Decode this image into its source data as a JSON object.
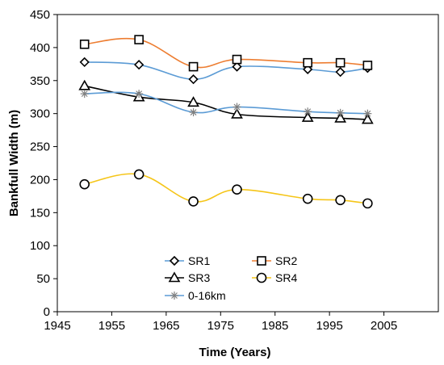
{
  "chart_data": {
    "type": "line",
    "title": "",
    "xlabel": "Time (Years)",
    "ylabel": "Bankfull Width (m)",
    "xlim": [
      1945,
      2015
    ],
    "ylim": [
      0,
      450
    ],
    "xticks": [
      "1945",
      "1955",
      "1965",
      "1975",
      "1985",
      "1995",
      "2005"
    ],
    "yticks": [
      "0",
      "50",
      "100",
      "150",
      "200",
      "250",
      "300",
      "350",
      "400",
      "450"
    ],
    "grid": false,
    "legend_position": "bottom-left",
    "series": [
      {
        "name": "SR1",
        "marker": "diamond",
        "color": "#5b9bd5",
        "points": [
          [
            1950,
            378
          ],
          [
            1960,
            374
          ],
          [
            1970,
            352
          ],
          [
            1978,
            371
          ],
          [
            1991,
            367
          ],
          [
            1997,
            363
          ],
          [
            2002,
            369
          ]
        ]
      },
      {
        "name": "SR2",
        "marker": "square",
        "color": "#ed7d31",
        "points": [
          [
            1950,
            405
          ],
          [
            1960,
            412
          ],
          [
            1970,
            371
          ],
          [
            1978,
            382
          ],
          [
            1991,
            377
          ],
          [
            1997,
            377
          ],
          [
            2002,
            373
          ]
        ]
      },
      {
        "name": "SR3",
        "marker": "triangle",
        "color": "#000000",
        "points": [
          [
            1950,
            342
          ],
          [
            1960,
            325
          ],
          [
            1970,
            317
          ],
          [
            1978,
            299
          ],
          [
            1991,
            294
          ],
          [
            1997,
            293
          ],
          [
            2002,
            291
          ]
        ]
      },
      {
        "name": "SR4",
        "marker": "circle",
        "color": "#f5c518",
        "points": [
          [
            1950,
            193
          ],
          [
            1960,
            208
          ],
          [
            1970,
            167
          ],
          [
            1978,
            185
          ],
          [
            1991,
            171
          ],
          [
            1997,
            169
          ],
          [
            2002,
            164
          ]
        ]
      },
      {
        "name": "0-16km",
        "marker": "asterisk",
        "color": "#5b9bd5",
        "points": [
          [
            1950,
            330
          ],
          [
            1960,
            330
          ],
          [
            1970,
            302
          ],
          [
            1978,
            310
          ],
          [
            1991,
            303
          ],
          [
            1997,
            301
          ],
          [
            2002,
            300
          ]
        ]
      }
    ]
  }
}
